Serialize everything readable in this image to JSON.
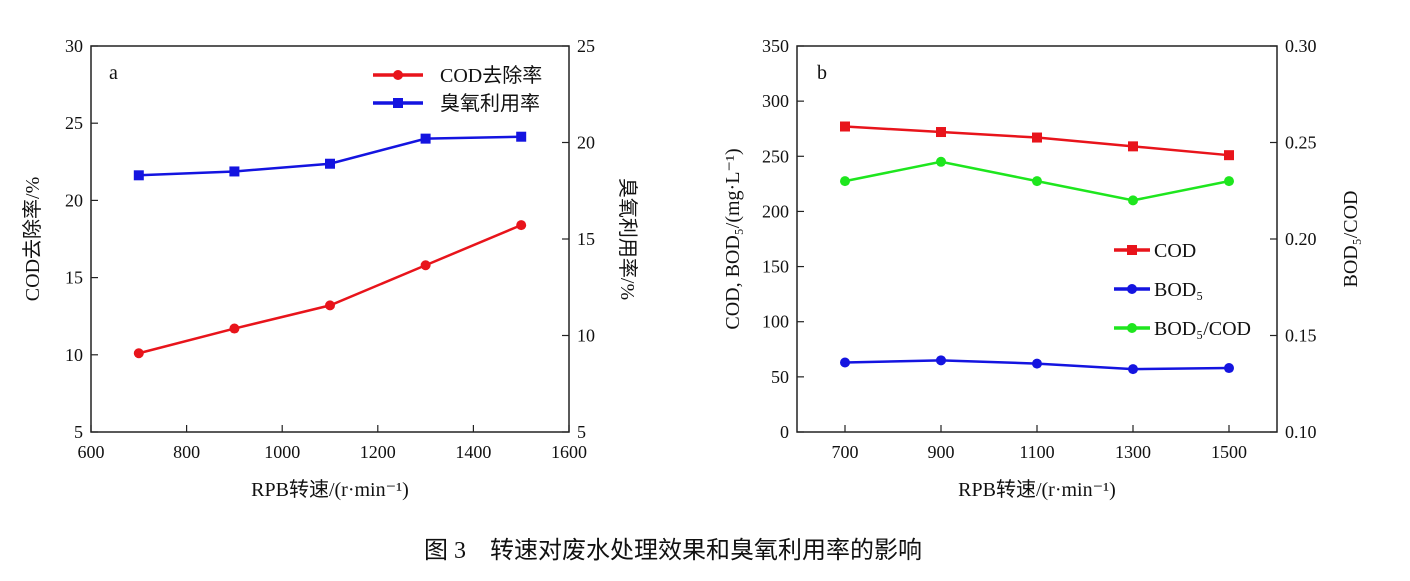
{
  "caption": "图 3　转速对废水处理效果和臭氧利用率的影响",
  "chart_data": [
    {
      "type": "line",
      "panel_label": "a",
      "xlabel": "RPB转速/(r·min⁻¹)",
      "ylabel": "COD去除率/%",
      "y2label": "臭氧利用率/%",
      "xlim": [
        600,
        1600
      ],
      "ylim": [
        5,
        30
      ],
      "y2lim": [
        5,
        25
      ],
      "xticks": [
        600,
        800,
        1000,
        1200,
        1400,
        1600
      ],
      "yticks": [
        5,
        10,
        15,
        20,
        25,
        30
      ],
      "y2ticks": [
        5,
        10,
        15,
        20,
        25
      ],
      "x": [
        700,
        900,
        1100,
        1300,
        1500
      ],
      "legend_position": "top-right",
      "grid": false,
      "series": [
        {
          "name": "COD去除率",
          "axis": "left",
          "color": "#e8141b",
          "marker": "circle",
          "values": [
            10.1,
            11.7,
            13.2,
            15.8,
            18.4
          ]
        },
        {
          "name": "臭氧利用率",
          "axis": "right",
          "color": "#1414e0",
          "marker": "square",
          "values": [
            18.3,
            18.5,
            18.9,
            20.2,
            20.3
          ]
        }
      ]
    },
    {
      "type": "line",
      "panel_label": "b",
      "xlabel": "RPB转速/(r·min⁻¹)",
      "ylabel": "COD, BOD₅/(mg·L⁻¹)",
      "y2label": "BOD₅/COD",
      "categories": [
        "700",
        "900",
        "1100",
        "1300",
        "1500"
      ],
      "ylim": [
        0,
        350
      ],
      "y2lim": [
        0.1,
        0.3
      ],
      "yticks": [
        0,
        50,
        100,
        150,
        200,
        250,
        300,
        350
      ],
      "y2ticks": [
        "0.10",
        "0.15",
        "0.20",
        "0.25",
        "0.30"
      ],
      "legend_position": "center-right",
      "grid": false,
      "series": [
        {
          "name": "COD",
          "axis": "left",
          "color": "#e8141b",
          "marker": "square",
          "values": [
            277,
            272,
            267,
            259,
            251
          ]
        },
        {
          "name": "BOD₅",
          "axis": "left",
          "color": "#1414e0",
          "marker": "circle",
          "values": [
            63,
            65,
            62,
            57,
            58
          ]
        },
        {
          "name": "BOD₅/COD",
          "axis": "right",
          "color": "#1ee61e",
          "marker": "circle",
          "values": [
            0.23,
            0.24,
            0.23,
            0.22,
            0.23
          ]
        }
      ]
    }
  ]
}
